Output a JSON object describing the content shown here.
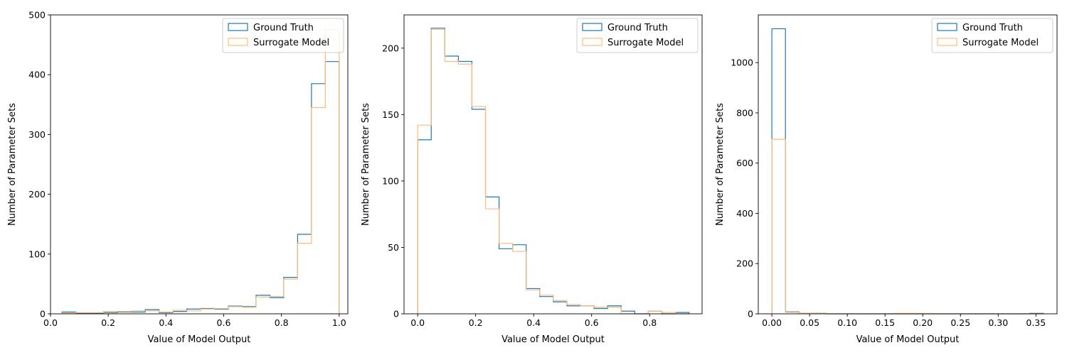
{
  "chart_data": [
    {
      "type": "histogram",
      "xlabel": "Value of Model Output",
      "ylabel": "Number of Parameter Sets",
      "xlim": [
        0.0,
        1.03
      ],
      "ylim": [
        0,
        500
      ],
      "xticks": [
        0.0,
        0.2,
        0.4,
        0.6,
        0.8,
        1.0
      ],
      "xtick_labels": [
        "0.0",
        "0.2",
        "0.4",
        "0.6",
        "0.8",
        "1.0"
      ],
      "yticks": [
        0,
        100,
        200,
        300,
        400,
        500
      ],
      "ytick_labels": [
        "0",
        "100",
        "200",
        "300",
        "400",
        "500"
      ],
      "legend": "top-right",
      "bin_edges": [
        0.04,
        0.088,
        0.136,
        0.184,
        0.232,
        0.28,
        0.328,
        0.376,
        0.424,
        0.472,
        0.52,
        0.568,
        0.616,
        0.664,
        0.712,
        0.76,
        0.808,
        0.856,
        0.904,
        0.952,
        1.0
      ],
      "series": [
        {
          "name": "Ground Truth",
          "color": "#1f77b4",
          "values": [
            3,
            1,
            1,
            2,
            3,
            3,
            7,
            2,
            4,
            8,
            9,
            8,
            13,
            12,
            31,
            27,
            61,
            133,
            385,
            422
          ]
        },
        {
          "name": "Surrogate Model",
          "color": "#ffbb78",
          "values": [
            1,
            2,
            2,
            4,
            4,
            5,
            5,
            3,
            6,
            5,
            8,
            9,
            12,
            11,
            28,
            29,
            58,
            118,
            345,
            475
          ]
        }
      ]
    },
    {
      "type": "histogram",
      "xlabel": "Value of Model Output",
      "ylabel": "Number of Parameter Sets",
      "xlim": [
        -0.047,
        0.981
      ],
      "ylim": [
        0,
        225
      ],
      "xticks": [
        0.0,
        0.2,
        0.4,
        0.6,
        0.8
      ],
      "xtick_labels": [
        "0.0",
        "0.2",
        "0.4",
        "0.6",
        "0.8"
      ],
      "yticks": [
        0,
        50,
        100,
        150,
        200
      ],
      "ytick_labels": [
        "0",
        "50",
        "100",
        "150",
        "200"
      ],
      "legend": "top-right",
      "bin_edges": [
        0.0,
        0.0468,
        0.0936,
        0.1404,
        0.1872,
        0.234,
        0.2808,
        0.3276,
        0.3744,
        0.4212,
        0.468,
        0.5148,
        0.5616,
        0.6084,
        0.6552,
        0.702,
        0.7488,
        0.7956,
        0.8424,
        0.8892,
        0.936
      ],
      "series": [
        {
          "name": "Ground Truth",
          "color": "#1f77b4",
          "values": [
            131,
            215,
            194,
            190,
            154,
            88,
            49,
            52,
            19,
            13,
            9,
            6,
            6,
            4,
            6,
            2,
            0,
            2,
            0,
            1
          ]
        },
        {
          "name": "Surrogate Model",
          "color": "#ffbb78",
          "values": [
            142,
            214,
            190,
            188,
            156,
            79,
            53,
            47,
            18,
            14,
            10,
            7,
            6,
            5,
            5,
            0,
            0,
            2,
            1,
            0
          ]
        }
      ]
    },
    {
      "type": "histogram",
      "xlabel": "Value of Model Output",
      "ylabel": "Number of Parameter Sets",
      "xlim": [
        -0.018,
        0.378
      ],
      "ylim": [
        0,
        1190
      ],
      "xticks": [
        0.0,
        0.05,
        0.1,
        0.15,
        0.2,
        0.25,
        0.3,
        0.35
      ],
      "xtick_labels": [
        "0.00",
        "0.05",
        "0.10",
        "0.15",
        "0.20",
        "0.25",
        "0.30",
        "0.35"
      ],
      "yticks": [
        0,
        200,
        400,
        600,
        800,
        1000
      ],
      "ytick_labels": [
        "0",
        "200",
        "400",
        "600",
        "800",
        "1000"
      ],
      "legend": "top-right",
      "bin_edges": [
        0.0,
        0.018,
        0.036,
        0.054,
        0.072,
        0.09,
        0.108,
        0.126,
        0.144,
        0.162,
        0.18,
        0.198,
        0.216,
        0.234,
        0.252,
        0.27,
        0.288,
        0.306,
        0.324,
        0.342,
        0.36
      ],
      "series": [
        {
          "name": "Ground Truth",
          "color": "#1f77b4",
          "values": [
            1135,
            8,
            2,
            2,
            0,
            0,
            0,
            0,
            0,
            0,
            0,
            0,
            0,
            0,
            0,
            0,
            0,
            0,
            0,
            2
          ]
        },
        {
          "name": "Surrogate Model",
          "color": "#ffbb78",
          "values": [
            695,
            6,
            2,
            1,
            0,
            0,
            0,
            0,
            0,
            2,
            2,
            1,
            0,
            0,
            0,
            0,
            0,
            0,
            0,
            0
          ]
        }
      ]
    }
  ]
}
